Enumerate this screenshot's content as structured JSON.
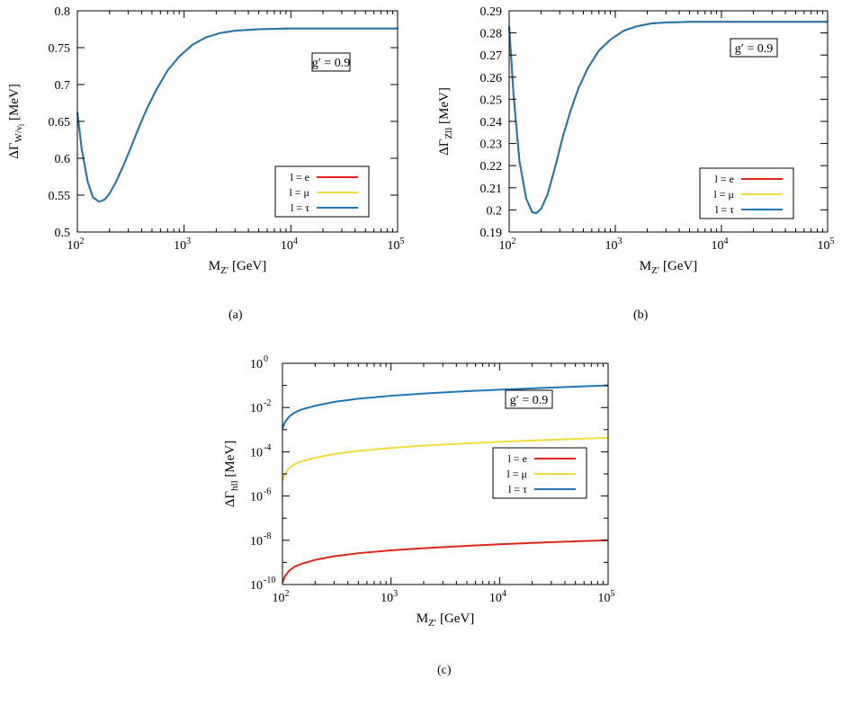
{
  "colors": {
    "e": "#e0261c",
    "mu": "#f0dc3c",
    "tau": "#1f77b4"
  },
  "chart_data": [
    {
      "id": "a",
      "type": "line",
      "caption": "(a)",
      "annotation": "g′ = 0.9",
      "xscale": "log",
      "xlim": [
        100,
        100000
      ],
      "xticks": [
        {
          "e": "2",
          "v": 100
        },
        {
          "e": "3",
          "v": 1000
        },
        {
          "e": "4",
          "v": 10000
        },
        {
          "e": "5",
          "v": 100000
        }
      ],
      "xlabel": {
        "main": "M",
        "sub": "Z′",
        "unit": " [GeV]"
      },
      "ylabel": {
        "main": "ΔΓ",
        "sub": "W/ν",
        "subsub": "l",
        "unit": " [MeV]"
      },
      "yscale": "linear",
      "ylim": [
        0.5,
        0.8
      ],
      "yticks": [
        {
          "v": 0.5,
          "t": "0.5"
        },
        {
          "v": 0.55,
          "t": "0.55"
        },
        {
          "v": 0.6,
          "t": "0.6"
        },
        {
          "v": 0.65,
          "t": "0.65"
        },
        {
          "v": 0.7,
          "t": "0.7"
        },
        {
          "v": 0.75,
          "t": "0.75"
        },
        {
          "v": 0.8,
          "t": "0.8"
        }
      ],
      "legend_position": "bottom-right",
      "series": [
        {
          "name": "l = e",
          "key": "e",
          "x": [
            100,
            110,
            125,
            140,
            160,
            180,
            200,
            230,
            270,
            320,
            380,
            450,
            550,
            700,
            900,
            1200,
            1600,
            2200,
            3000,
            5000,
            10000,
            30000,
            100000
          ],
          "y": [
            0.662,
            0.612,
            0.568,
            0.547,
            0.541,
            0.544,
            0.552,
            0.568,
            0.59,
            0.616,
            0.643,
            0.668,
            0.693,
            0.719,
            0.738,
            0.754,
            0.764,
            0.77,
            0.773,
            0.775,
            0.776,
            0.776,
            0.776
          ]
        },
        {
          "name": "l = μ",
          "key": "mu",
          "x": [
            100,
            110,
            125,
            140,
            160,
            180,
            200,
            230,
            270,
            320,
            380,
            450,
            550,
            700,
            900,
            1200,
            1600,
            2200,
            3000,
            5000,
            10000,
            30000,
            100000
          ],
          "y": [
            0.662,
            0.612,
            0.568,
            0.547,
            0.541,
            0.544,
            0.552,
            0.568,
            0.59,
            0.616,
            0.643,
            0.668,
            0.693,
            0.719,
            0.738,
            0.754,
            0.764,
            0.77,
            0.773,
            0.775,
            0.776,
            0.776,
            0.776
          ]
        },
        {
          "name": "l = τ",
          "key": "tau",
          "x": [
            100,
            110,
            125,
            140,
            160,
            180,
            200,
            230,
            270,
            320,
            380,
            450,
            550,
            700,
            900,
            1200,
            1600,
            2200,
            3000,
            5000,
            10000,
            30000,
            100000
          ],
          "y": [
            0.662,
            0.612,
            0.568,
            0.547,
            0.541,
            0.544,
            0.552,
            0.568,
            0.59,
            0.616,
            0.643,
            0.668,
            0.693,
            0.719,
            0.738,
            0.754,
            0.764,
            0.77,
            0.773,
            0.775,
            0.776,
            0.776,
            0.776
          ]
        }
      ]
    },
    {
      "id": "b",
      "type": "line",
      "caption": "(b)",
      "annotation": "g′ = 0.9",
      "xscale": "log",
      "xlim": [
        100,
        100000
      ],
      "xticks": [
        {
          "e": "2",
          "v": 100
        },
        {
          "e": "3",
          "v": 1000
        },
        {
          "e": "4",
          "v": 10000
        },
        {
          "e": "5",
          "v": 100000
        }
      ],
      "xlabel": {
        "main": "M",
        "sub": "Z′",
        "unit": " [GeV]"
      },
      "ylabel": {
        "main": "ΔΓ",
        "sub": "Zll",
        "subsub": "",
        "unit": " [MeV]"
      },
      "yscale": "linear",
      "ylim": [
        0.19,
        0.29
      ],
      "yticks": [
        {
          "v": 0.19,
          "t": "0.19"
        },
        {
          "v": 0.2,
          "t": "0.2"
        },
        {
          "v": 0.21,
          "t": "0.21"
        },
        {
          "v": 0.22,
          "t": "0.22"
        },
        {
          "v": 0.23,
          "t": "0.23"
        },
        {
          "v": 0.24,
          "t": "0.24"
        },
        {
          "v": 0.25,
          "t": "0.25"
        },
        {
          "v": 0.26,
          "t": "0.26"
        },
        {
          "v": 0.27,
          "t": "0.27"
        },
        {
          "v": 0.28,
          "t": "0.28"
        },
        {
          "v": 0.29,
          "t": "0.29"
        }
      ],
      "legend_position": "bottom-right",
      "series": [
        {
          "name": "l = e",
          "key": "e",
          "x": [
            100,
            110,
            125,
            145,
            165,
            180,
            200,
            230,
            270,
            320,
            380,
            450,
            550,
            700,
            900,
            1200,
            1600,
            2200,
            3000,
            5000,
            10000,
            30000,
            100000
          ],
          "y": [
            0.283,
            0.252,
            0.222,
            0.205,
            0.199,
            0.1985,
            0.2005,
            0.207,
            0.219,
            0.233,
            0.245,
            0.255,
            0.264,
            0.272,
            0.277,
            0.281,
            0.283,
            0.2843,
            0.2847,
            0.285,
            0.285,
            0.285,
            0.285
          ]
        },
        {
          "name": "l = μ",
          "key": "mu",
          "x": [
            100,
            110,
            125,
            145,
            165,
            180,
            200,
            230,
            270,
            320,
            380,
            450,
            550,
            700,
            900,
            1200,
            1600,
            2200,
            3000,
            5000,
            10000,
            30000,
            100000
          ],
          "y": [
            0.283,
            0.252,
            0.222,
            0.205,
            0.199,
            0.1985,
            0.2005,
            0.207,
            0.219,
            0.233,
            0.245,
            0.255,
            0.264,
            0.272,
            0.277,
            0.281,
            0.283,
            0.2843,
            0.2847,
            0.285,
            0.285,
            0.285,
            0.285
          ]
        },
        {
          "name": "l = τ",
          "key": "tau",
          "x": [
            100,
            110,
            125,
            145,
            165,
            180,
            200,
            230,
            270,
            320,
            380,
            450,
            550,
            700,
            900,
            1200,
            1600,
            2200,
            3000,
            5000,
            10000,
            30000,
            100000
          ],
          "y": [
            0.283,
            0.252,
            0.222,
            0.205,
            0.199,
            0.1985,
            0.2005,
            0.207,
            0.219,
            0.233,
            0.245,
            0.255,
            0.264,
            0.272,
            0.277,
            0.281,
            0.283,
            0.2843,
            0.2847,
            0.285,
            0.285,
            0.285,
            0.285
          ]
        }
      ]
    },
    {
      "id": "c",
      "type": "line",
      "caption": "(c)",
      "annotation": "g′ = 0.9",
      "xscale": "log",
      "xlim": [
        100,
        100000
      ],
      "xticks": [
        {
          "e": "2",
          "v": 100
        },
        {
          "e": "3",
          "v": 1000
        },
        {
          "e": "4",
          "v": 10000
        },
        {
          "e": "5",
          "v": 100000
        }
      ],
      "xlabel": {
        "main": "M",
        "sub": "Z′",
        "unit": " [GeV]"
      },
      "ylabel": {
        "main": "ΔΓ",
        "sub": "hll",
        "subsub": "",
        "unit": " [MeV]"
      },
      "yscale": "log",
      "ylim": [
        1e-10,
        1
      ],
      "yticks": [
        {
          "v": 1e-10,
          "e": "-10"
        },
        {
          "v": 1e-08,
          "e": "-8"
        },
        {
          "v": 1e-06,
          "e": "-6"
        },
        {
          "v": 0.0001,
          "e": "-4"
        },
        {
          "v": 0.01,
          "e": "-2"
        },
        {
          "v": 1,
          "e": "0"
        }
      ],
      "legend_position": "center-right",
      "series": [
        {
          "name": "l = e",
          "key": "e",
          "x": [
            100,
            105,
            115,
            130,
            150,
            200,
            300,
            500,
            1000,
            2000,
            5000,
            10000,
            30000,
            100000
          ],
          "y": [
            1.2e-10,
            2.3e-10,
            4.2e-10,
            6.5e-10,
            8.7e-10,
            1.3e-09,
            1.9e-09,
            2.6e-09,
            3.5e-09,
            4.4e-09,
            5.6e-09,
            6.6e-09,
            8.2e-09,
            1e-08
          ]
        },
        {
          "name": "l = μ",
          "key": "mu",
          "x": [
            100,
            105,
            115,
            130,
            150,
            200,
            300,
            500,
            1000,
            2000,
            5000,
            10000,
            30000,
            100000
          ],
          "y": [
            5e-06,
            9.5e-06,
            1.8e-05,
            2.8e-05,
            3.7e-05,
            5.4e-05,
            7.9e-05,
            0.00011,
            0.00015,
            0.00019,
            0.00024,
            0.00028,
            0.00035,
            0.00043
          ]
        },
        {
          "name": "l = τ",
          "key": "tau",
          "x": [
            100,
            105,
            115,
            130,
            150,
            200,
            300,
            500,
            1000,
            2000,
            5000,
            10000,
            30000,
            100000
          ],
          "y": [
            0.0011,
            0.0021,
            0.0039,
            0.006,
            0.0082,
            0.012,
            0.018,
            0.025,
            0.034,
            0.043,
            0.055,
            0.064,
            0.08,
            0.1
          ]
        }
      ]
    }
  ]
}
